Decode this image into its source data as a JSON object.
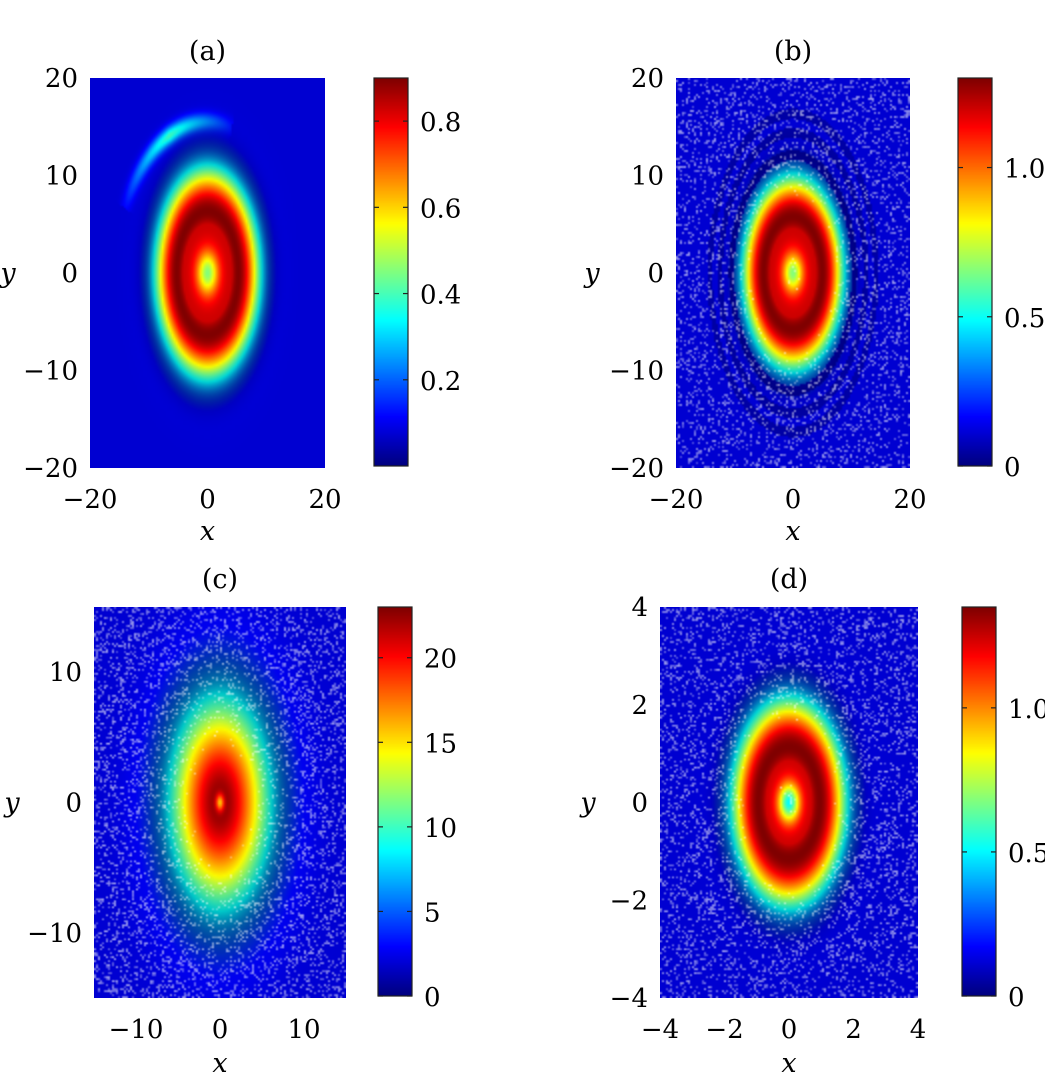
{
  "figure": {
    "panels": [
      {
        "label": "(a)",
        "xlabel": "x",
        "ylabel": "y",
        "show_ylabel": true,
        "show_xlabel": true
      },
      {
        "label": "(b)",
        "xlabel": "x",
        "ylabel": "y",
        "show_ylabel": true,
        "show_xlabel": true
      },
      {
        "label": "(c)",
        "xlabel": "x",
        "ylabel": "y",
        "show_ylabel": true,
        "show_xlabel": true
      },
      {
        "label": "(d)",
        "xlabel": "x",
        "ylabel": "y",
        "show_ylabel": true,
        "show_xlabel": true
      }
    ]
  },
  "chart_data": [
    {
      "type": "heatmap",
      "title": "(a)",
      "xlabel": "x",
      "ylabel": "y",
      "xlim": [
        -20,
        20
      ],
      "ylim": [
        -20,
        20
      ],
      "xticks": [
        "−20",
        "0",
        "20"
      ],
      "xtick_values": [
        -20,
        0,
        20
      ],
      "yticks": [
        "20",
        "10",
        "0",
        "−10",
        "−20"
      ],
      "ytick_values": [
        20,
        10,
        0,
        -10,
        -20
      ],
      "colorbar": {
        "min": 0,
        "max": 0.9,
        "ticks": [
          "0.2",
          "0.4",
          "0.6",
          "0.8"
        ],
        "tick_values": [
          0.2,
          0.4,
          0.6,
          0.8
        ]
      },
      "field": {
        "shape": "ring",
        "peak": 0.9,
        "core": 0.5,
        "ring_radius": 5.5,
        "ring_width": 5.0,
        "center": [
          0,
          0
        ],
        "rx_scale": 0.95,
        "ry_scale": 1.15,
        "noise": 0.0,
        "halo": 0.12,
        "arc": true
      }
    },
    {
      "type": "heatmap",
      "title": "(b)",
      "xlabel": "x",
      "ylabel": "y",
      "xlim": [
        -20,
        20
      ],
      "ylim": [
        -20,
        20
      ],
      "xticks": [
        "−20",
        "0",
        "20"
      ],
      "xtick_values": [
        -20,
        0,
        20
      ],
      "yticks": [
        "20",
        "10",
        "0",
        "−10",
        "−20"
      ],
      "ytick_values": [
        20,
        10,
        0,
        -10,
        -20
      ],
      "colorbar": {
        "min": 0,
        "max": 1.3,
        "ticks": [
          "0",
          "0.5",
          "1.0"
        ],
        "tick_values": [
          0,
          0.5,
          1.0
        ]
      },
      "field": {
        "shape": "ring",
        "peak": 1.3,
        "core": 0.5,
        "ring_radius": 5.0,
        "ring_width": 4.6,
        "center": [
          0,
          0
        ],
        "rx_scale": 1.0,
        "ry_scale": 1.15,
        "noise": 0.18,
        "halo": 0.0,
        "arc": false,
        "dark_rings": true
      }
    },
    {
      "type": "heatmap",
      "title": "(c)",
      "xlabel": "x",
      "ylabel": "y",
      "xlim": [
        -15,
        15
      ],
      "ylim": [
        -15,
        15
      ],
      "xticks": [
        "−10",
        "0",
        "10"
      ],
      "xtick_values": [
        -10,
        0,
        10
      ],
      "yticks": [
        "10",
        "0",
        "−10"
      ],
      "ytick_values": [
        10,
        0,
        -10
      ],
      "colorbar": {
        "min": 0,
        "max": 23,
        "ticks": [
          "0",
          "5",
          "10",
          "15",
          "20"
        ],
        "tick_values": [
          0,
          5,
          10,
          15,
          20
        ]
      },
      "field": {
        "shape": "peak",
        "peak": 23,
        "core": 0.3,
        "ring_radius": 1.2,
        "ring_width": 5.5,
        "center": [
          0,
          0
        ],
        "rx_scale": 1.0,
        "ry_scale": 1.35,
        "noise": 0.22,
        "halo": 0.0,
        "arc": false
      }
    },
    {
      "type": "heatmap",
      "title": "(d)",
      "xlabel": "x",
      "ylabel": "y",
      "xlim": [
        -4,
        4
      ],
      "ylim": [
        -4,
        4
      ],
      "xticks": [
        "−4",
        "−2",
        "0",
        "2",
        "4"
      ],
      "xtick_values": [
        -4,
        -2,
        0,
        2,
        4
      ],
      "yticks": [
        "4",
        "2",
        "0",
        "−2",
        "−4"
      ],
      "ytick_values": [
        4,
        2,
        0,
        -2,
        -4
      ],
      "colorbar": {
        "min": 0,
        "max": 1.35,
        "ticks": [
          "0",
          "0.5",
          "1.0"
        ],
        "tick_values": [
          0,
          0.5,
          1.0
        ]
      },
      "field": {
        "shape": "ring",
        "peak": 1.35,
        "core": 0.35,
        "ring_radius": 0.95,
        "ring_width": 1.05,
        "center": [
          0,
          0
        ],
        "rx_scale": 1.0,
        "ry_scale": 1.2,
        "noise": 0.2,
        "halo": 0.0,
        "arc": false
      }
    }
  ]
}
